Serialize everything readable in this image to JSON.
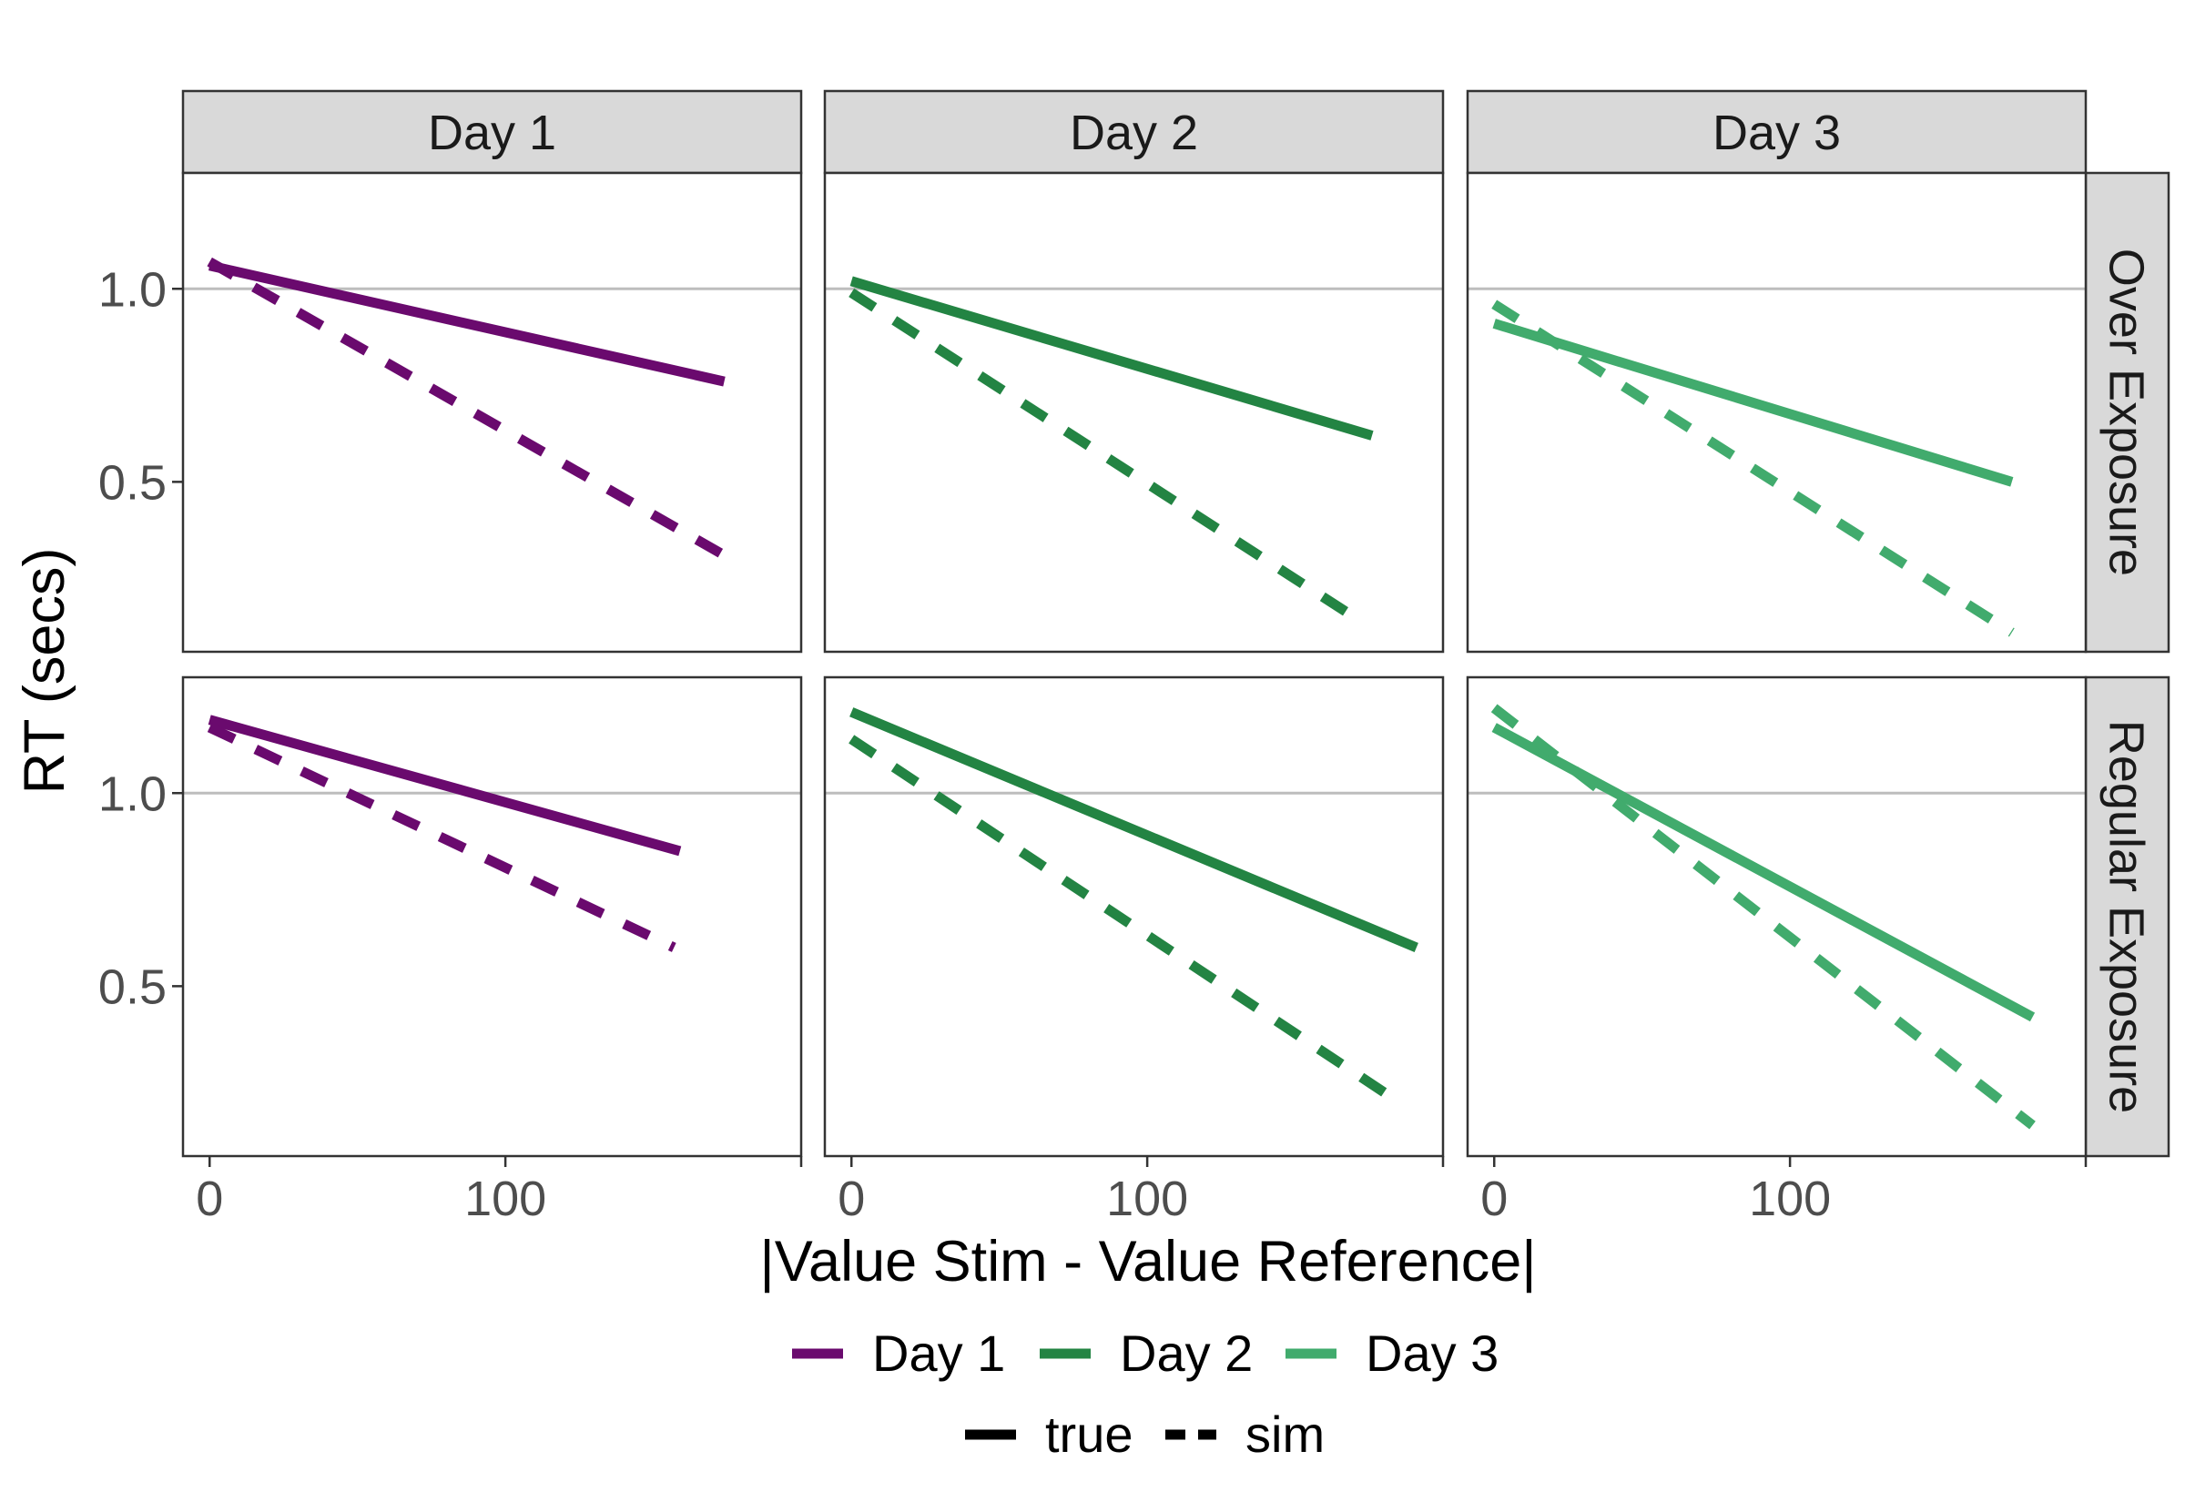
{
  "chart_data": {
    "type": "line",
    "xlabel": "|Value Stim - Value Reference|",
    "ylabel": "RT (secs)",
    "xlim": [
      -9,
      200
    ],
    "ylim": [
      0.06,
      1.3
    ],
    "x_ticks": [
      0,
      100
    ],
    "x_tick_labels": [
      "0",
      "100"
    ],
    "y_ticks": [
      1.0,
      0.5
    ],
    "y_tick_labels": [
      "1.0",
      "0.5"
    ],
    "hline": 1.0,
    "grid": false,
    "columns": [
      "Day 1",
      "Day 2",
      "Day 3"
    ],
    "rows": [
      "Over Exposure",
      "Regular Exposure"
    ],
    "colors": {
      "Day 1": "#6a0a6e",
      "Day 2": "#238443",
      "Day 3": "#41ab6d"
    },
    "panels": [
      {
        "row": "Over Exposure",
        "col": "Day 1",
        "true": {
          "x": [
            0,
            174
          ],
          "y": [
            1.06,
            0.76
          ]
        },
        "sim": {
          "x": [
            0,
            174
          ],
          "y": [
            1.07,
            0.31
          ]
        }
      },
      {
        "row": "Over Exposure",
        "col": "Day 2",
        "true": {
          "x": [
            0,
            176
          ],
          "y": [
            1.02,
            0.62
          ]
        },
        "sim": {
          "x": [
            0,
            172
          ],
          "y": [
            0.99,
            0.14
          ]
        }
      },
      {
        "row": "Over Exposure",
        "col": "Day 3",
        "true": {
          "x": [
            0,
            175
          ],
          "y": [
            0.91,
            0.5
          ]
        },
        "sim": {
          "x": [
            0,
            175
          ],
          "y": [
            0.96,
            0.11
          ]
        }
      },
      {
        "row": "Regular Exposure",
        "col": "Day 1",
        "true": {
          "x": [
            0,
            159
          ],
          "y": [
            1.19,
            0.85
          ]
        },
        "sim": {
          "x": [
            0,
            157
          ],
          "y": [
            1.17,
            0.6
          ]
        }
      },
      {
        "row": "Regular Exposure",
        "col": "Day 2",
        "true": {
          "x": [
            0,
            191
          ],
          "y": [
            1.21,
            0.6
          ]
        },
        "sim": {
          "x": [
            0,
            185
          ],
          "y": [
            1.14,
            0.2
          ]
        }
      },
      {
        "row": "Regular Exposure",
        "col": "Day 3",
        "true": {
          "x": [
            0,
            182
          ],
          "y": [
            1.17,
            0.42
          ]
        },
        "sim": {
          "x": [
            0,
            182
          ],
          "y": [
            1.22,
            0.14
          ]
        }
      }
    ],
    "legend": {
      "placement": "bottom",
      "color_entries": [
        "Day 1",
        "Day 2",
        "Day 3"
      ],
      "linetype_entries": [
        "true",
        "sim"
      ]
    }
  }
}
